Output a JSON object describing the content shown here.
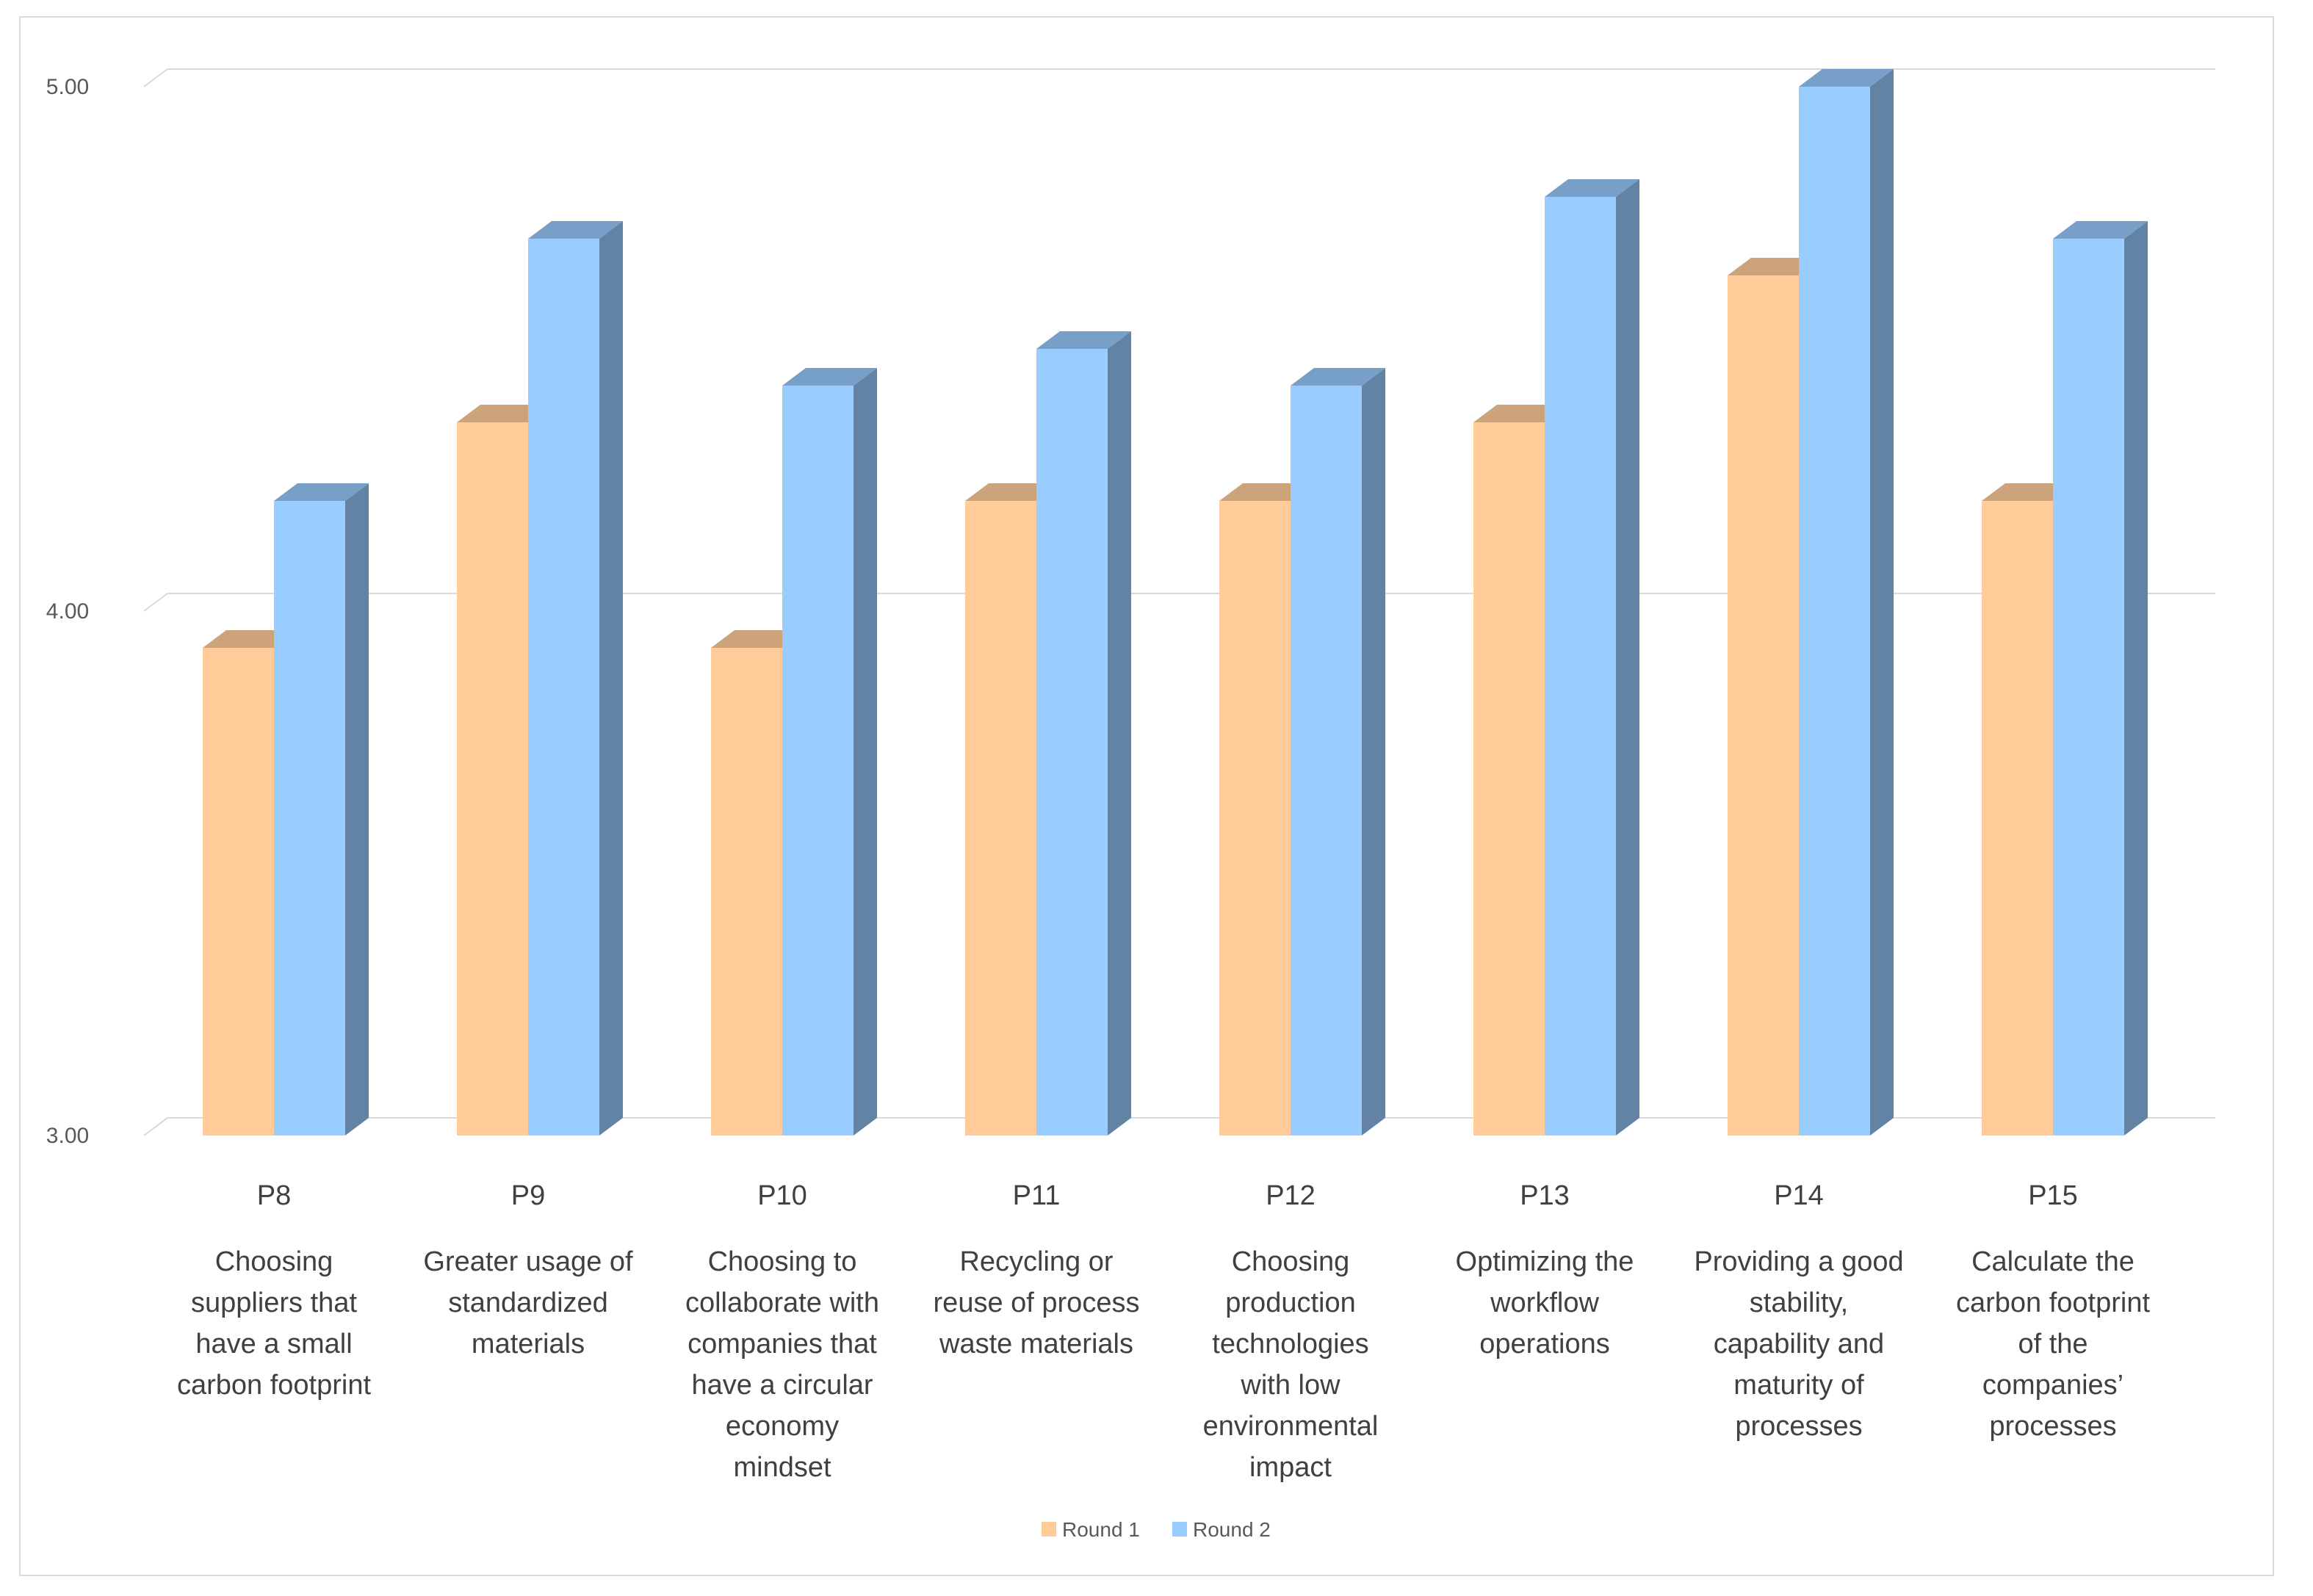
{
  "chart_data": {
    "type": "bar",
    "title": "",
    "xlabel": "",
    "ylabel": "",
    "ylim": [
      3.0,
      5.0
    ],
    "yticks": [
      "3.00",
      "4.00",
      "5.00"
    ],
    "grid": true,
    "legend_position": "bottom",
    "categories": [
      "P8",
      "P9",
      "P10",
      "P11",
      "P12",
      "P13",
      "P14",
      "P15"
    ],
    "category_descriptions": [
      [
        "Choosing",
        "suppliers that",
        "have a small",
        "carbon footprint"
      ],
      [
        "Greater usage of",
        "standardized",
        "materials"
      ],
      [
        "Choosing to",
        "collaborate with",
        "companies that",
        "have a circular",
        "economy",
        "mindset"
      ],
      [
        "Recycling or",
        "reuse of process",
        "waste materials"
      ],
      [
        "Choosing",
        "production",
        "technologies",
        "with low",
        "environmental",
        "impact"
      ],
      [
        "Optimizing the",
        "workflow",
        "operations"
      ],
      [
        "Providing a good",
        "stability,",
        "capability and",
        "maturity of",
        "processes"
      ],
      [
        "Calculate the",
        "carbon footprint",
        "of the",
        "companies’",
        "processes"
      ]
    ],
    "series": [
      {
        "name": "Round 1",
        "color": "#FFCC99",
        "values": [
          3.93,
          4.36,
          3.93,
          4.21,
          4.21,
          4.36,
          4.64,
          4.21
        ]
      },
      {
        "name": "Round 2",
        "color": "#99CCFF",
        "values": [
          4.21,
          4.71,
          4.43,
          4.5,
          4.43,
          4.79,
          5.0,
          4.71
        ]
      }
    ]
  }
}
